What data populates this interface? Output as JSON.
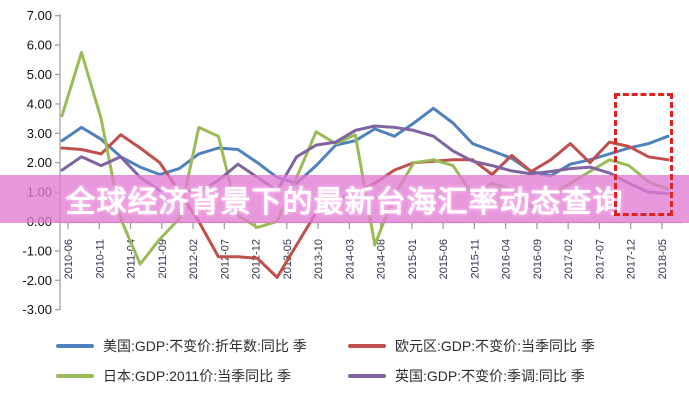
{
  "banner": {
    "title": "全球经济背景下的最新台海汇率动态查询",
    "background_rgba": "rgba(224,122,210,0.78)",
    "text_color": "#FFFFFF"
  },
  "chart_data": {
    "type": "line",
    "title": "",
    "xlabel": "",
    "ylabel": "",
    "ylim": [
      -3,
      7
    ],
    "grid": false,
    "legend_position": "bottom",
    "y_tick_labels": [
      "7.00",
      "6.00",
      "5.00",
      "4.00",
      "3.00",
      "2.00",
      "1.00",
      "0.00",
      "-1.00",
      "-2.00",
      "-3.00"
    ],
    "x_tick_labels": [
      "2010-06",
      "2010-11",
      "2011-04",
      "2011-09",
      "2012-02",
      "2012-07",
      "2012-12",
      "2013-05",
      "2013-10",
      "2014-03",
      "2014-08",
      "2015-01",
      "2015-06",
      "2015-11",
      "2016-04",
      "2016-09",
      "2017-02",
      "2017-07",
      "2017-12",
      "2018-05"
    ],
    "series": [
      {
        "name": "美国:GDP:不变价:折年数:同比 季",
        "color": "#4F81BD",
        "values": [
          2.75,
          3.2,
          2.8,
          2.2,
          1.85,
          1.6,
          1.8,
          2.3,
          2.5,
          2.45,
          2.0,
          1.5,
          1.3,
          1.9,
          2.6,
          2.75,
          3.15,
          2.9,
          3.35,
          3.85,
          3.35,
          2.65,
          2.4,
          2.15,
          1.7,
          1.55,
          1.95,
          2.1,
          2.3,
          2.5,
          2.65,
          2.9
        ]
      },
      {
        "name": "欧元区:GDP:不变价:当季同比 季",
        "color": "#C0504D",
        "values": [
          2.5,
          2.45,
          2.3,
          2.95,
          2.5,
          2.0,
          1.0,
          0.0,
          -1.2,
          -1.2,
          -1.25,
          -1.9,
          -0.8,
          0.3,
          0.7,
          1.0,
          1.3,
          1.75,
          2.0,
          2.05,
          2.1,
          2.1,
          1.6,
          2.25,
          1.7,
          2.1,
          2.65,
          2.0,
          2.7,
          2.55,
          2.2,
          2.1
        ]
      },
      {
        "name": "日本:GDP:2011价:当季同比 季",
        "color": "#9BBB59",
        "values": [
          3.6,
          5.75,
          3.5,
          0.1,
          -1.45,
          -0.6,
          0.1,
          3.2,
          2.9,
          0.2,
          -0.2,
          0.0,
          1.5,
          3.05,
          2.65,
          2.95,
          -0.8,
          0.9,
          2.0,
          2.1,
          1.9,
          0.9,
          1.3,
          1.1,
          0.5,
          0.9,
          1.3,
          1.7,
          2.1,
          1.9,
          1.35,
          1.1
        ]
      },
      {
        "name": "英国:GDP:不变价:季调:同比 季",
        "color": "#8064A2",
        "values": [
          1.75,
          2.2,
          1.9,
          2.2,
          1.5,
          1.05,
          1.1,
          1.0,
          1.4,
          1.95,
          1.5,
          1.05,
          2.2,
          2.6,
          2.7,
          3.1,
          3.25,
          3.2,
          3.1,
          2.9,
          2.4,
          2.05,
          1.9,
          1.72,
          1.62,
          1.7,
          1.8,
          1.85,
          1.65,
          1.3,
          1.0,
          0.95
        ]
      }
    ],
    "annotation": {
      "shape": "dashed-rectangle",
      "color": "#DD2222",
      "x_range": [
        "2017-10",
        "2018-05"
      ],
      "y_range": [
        0.4,
        4.4
      ]
    }
  }
}
